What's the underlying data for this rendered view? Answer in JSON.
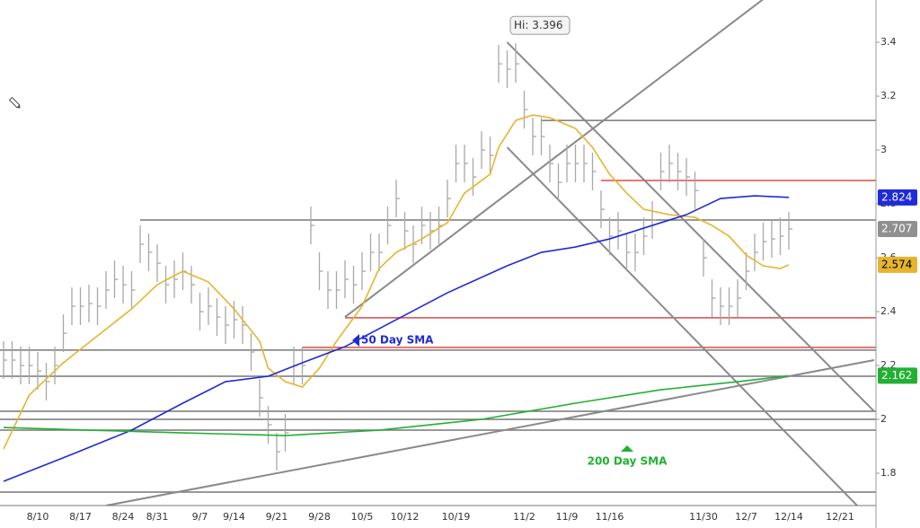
{
  "chart_data": {
    "type": "hlc",
    "categories": [
      null,
      null,
      null,
      null,
      "8/10",
      null,
      null,
      null,
      null,
      "8/17",
      null,
      null,
      null,
      null,
      "8/24",
      null,
      null,
      null,
      "8/31",
      null,
      null,
      null,
      null,
      "9/7",
      null,
      null,
      null,
      "9/14",
      null,
      null,
      null,
      null,
      "9/21",
      null,
      null,
      null,
      null,
      "9/28",
      null,
      null,
      null,
      null,
      "10/5",
      null,
      null,
      null,
      null,
      "10/12",
      null,
      null,
      null,
      null,
      null,
      "10/19",
      null,
      null,
      null,
      null,
      null,
      null,
      null,
      "11/2",
      null,
      null,
      null,
      null,
      "11/9",
      null,
      null,
      null,
      null,
      "11/16",
      null,
      null,
      null,
      null,
      null,
      null,
      null,
      null,
      null,
      null,
      "11/30",
      null,
      null,
      null,
      null,
      "12/7",
      null,
      null,
      null,
      null,
      "12/14",
      null,
      null,
      null,
      null,
      null,
      "12/21"
    ],
    "high": [
      2.29,
      2.29,
      2.27,
      2.27,
      2.25,
      2.21,
      2.27,
      2.39,
      2.49,
      2.49,
      2.5,
      2.49,
      2.55,
      2.59,
      2.57,
      2.55,
      2.72,
      2.69,
      2.65,
      2.57,
      2.59,
      2.62,
      2.57,
      2.47,
      2.49,
      2.45,
      2.42,
      2.44,
      2.42,
      2.32,
      2.15,
      2.05,
      1.95,
      2.02,
      2.27,
      2.27,
      2.79,
      2.62,
      2.55,
      2.55,
      2.59,
      2.57,
      2.62,
      2.69,
      2.69,
      2.79,
      2.89,
      2.77,
      2.72,
      2.79,
      2.77,
      2.79,
      2.89,
      3.02,
      3.02,
      2.97,
      3.07,
      3.05,
      3.39,
      3.37,
      3.396,
      3.22,
      3.12,
      3.12,
      3.02,
      2.95,
      3.02,
      3.02,
      3.02,
      2.99,
      2.85,
      2.75,
      2.77,
      2.69,
      2.69,
      2.75,
      2.81,
      2.99,
      3.02,
      2.99,
      2.97,
      2.92,
      2.67,
      2.52,
      2.49,
      2.49,
      2.52,
      2.62,
      2.69,
      2.73,
      2.74,
      2.75,
      2.77,
      null,
      null,
      null,
      null,
      null,
      null
    ],
    "low": [
      2.15,
      2.15,
      2.13,
      2.13,
      2.11,
      2.07,
      2.13,
      2.25,
      2.35,
      2.35,
      2.36,
      2.35,
      2.41,
      2.45,
      2.43,
      2.41,
      2.58,
      2.55,
      2.51,
      2.43,
      2.45,
      2.48,
      2.43,
      2.33,
      2.35,
      2.31,
      2.28,
      2.3,
      2.28,
      2.18,
      2.01,
      1.91,
      1.81,
      1.88,
      2.13,
      2.13,
      2.65,
      2.48,
      2.41,
      2.41,
      2.45,
      2.43,
      2.48,
      2.55,
      2.55,
      2.65,
      2.75,
      2.63,
      2.58,
      2.65,
      2.63,
      2.65,
      2.75,
      2.88,
      2.88,
      2.83,
      2.93,
      2.91,
      3.25,
      3.23,
      3.25,
      3.08,
      2.98,
      2.98,
      2.88,
      2.81,
      2.88,
      2.88,
      2.88,
      2.85,
      2.71,
      2.61,
      2.63,
      2.55,
      2.55,
      2.61,
      2.67,
      2.85,
      2.88,
      2.85,
      2.83,
      2.78,
      2.53,
      2.38,
      2.35,
      2.35,
      2.38,
      2.48,
      2.55,
      2.59,
      2.6,
      2.61,
      2.63,
      null,
      null,
      null,
      null,
      null,
      null
    ],
    "close": [
      2.22,
      2.22,
      2.2,
      2.2,
      2.18,
      2.14,
      2.2,
      2.32,
      2.42,
      2.42,
      2.43,
      2.42,
      2.48,
      2.52,
      2.5,
      2.48,
      2.65,
      2.62,
      2.58,
      2.5,
      2.52,
      2.55,
      2.5,
      2.4,
      2.42,
      2.38,
      2.35,
      2.37,
      2.35,
      2.25,
      2.08,
      1.98,
      1.88,
      1.95,
      2.2,
      2.2,
      2.72,
      2.55,
      2.48,
      2.48,
      2.52,
      2.5,
      2.55,
      2.62,
      2.62,
      2.72,
      2.82,
      2.7,
      2.65,
      2.72,
      2.7,
      2.72,
      2.82,
      2.95,
      2.95,
      2.9,
      3.0,
      2.98,
      3.32,
      3.3,
      3.32,
      3.15,
      3.05,
      3.05,
      2.95,
      2.88,
      2.95,
      2.95,
      2.95,
      2.92,
      2.78,
      2.68,
      2.7,
      2.62,
      2.62,
      2.68,
      2.74,
      2.92,
      2.95,
      2.92,
      2.9,
      2.85,
      2.6,
      2.45,
      2.42,
      2.42,
      2.45,
      2.55,
      2.62,
      2.66,
      2.67,
      2.68,
      2.707,
      null,
      null,
      null,
      null,
      null,
      null
    ],
    "color": "#a8a8a8",
    "close_color": "#8c8c8c",
    "hi_label": "Hi: 3.396",
    "ylim": [
      1.68,
      3.557
    ],
    "yticks": [
      1.8,
      2,
      2.2,
      2.4,
      2.6,
      2.8,
      3,
      3.2,
      3.4
    ],
    "grid": false,
    "lines": [
      {
        "color": "#e6b52e",
        "x": [
          0,
          3,
          7,
          11,
          15,
          18,
          21,
          24,
          27,
          30,
          31,
          33,
          35,
          37,
          39,
          42,
          44,
          46,
          49,
          52,
          54,
          57,
          58,
          60,
          62,
          64,
          67,
          69,
          71,
          73,
          75,
          78,
          81,
          83,
          85,
          87,
          89,
          91,
          92
        ],
        "values": [
          1.89,
          2.09,
          2.21,
          2.31,
          2.41,
          2.5,
          2.55,
          2.51,
          2.41,
          2.29,
          2.19,
          2.14,
          2.12,
          2.19,
          2.29,
          2.42,
          2.56,
          2.62,
          2.67,
          2.73,
          2.84,
          2.91,
          3.01,
          3.11,
          3.13,
          3.12,
          3.08,
          3.01,
          2.91,
          2.84,
          2.78,
          2.76,
          2.75,
          2.72,
          2.68,
          2.61,
          2.57,
          2.56,
          2.574
        ]
      },
      {
        "label": "50 Day SMA",
        "color": "#1f2bd6",
        "x": [
          0,
          8,
          15,
          21,
          26,
          31,
          35,
          40,
          46,
          52,
          59,
          63,
          67,
          71,
          75,
          80,
          84,
          88,
          92
        ],
        "values": [
          1.77,
          1.87,
          1.96,
          2.06,
          2.14,
          2.16,
          2.21,
          2.27,
          2.37,
          2.47,
          2.57,
          2.62,
          2.64,
          2.67,
          2.71,
          2.76,
          2.82,
          2.83,
          2.824
        ]
      },
      {
        "label": "200 Day SMA",
        "color": "#22b033",
        "x": [
          0,
          10,
          21,
          33,
          44,
          56,
          67,
          77,
          86,
          92
        ],
        "values": [
          1.97,
          1.96,
          1.95,
          1.94,
          1.96,
          2.0,
          2.06,
          2.11,
          2.14,
          2.162
        ]
      }
    ],
    "levels": [
      {
        "value": 3.11,
        "color": "#777777",
        "from": 63
      },
      {
        "value": 2.887,
        "color": "#e04848",
        "from": 70
      },
      {
        "value": 2.74,
        "color": "#777777",
        "from": 16
      },
      {
        "value": 2.377,
        "color": "#e04848",
        "from": 40
      },
      {
        "value": 2.267,
        "color": "#e04848",
        "from": 35
      },
      {
        "value": 2.257,
        "color": "#777777"
      },
      {
        "value": 2.16,
        "color": "#777777"
      },
      {
        "value": 2.03,
        "color": "#777777"
      },
      {
        "value": 2.0,
        "color": "#777777"
      },
      {
        "value": 1.96,
        "color": "#777777"
      },
      {
        "value": 1.73,
        "color": "#777777"
      }
    ],
    "trendlines": [
      {
        "x": [
          40,
          89
        ],
        "values": [
          2.38,
          3.56
        ],
        "color": "#8a8a8a"
      },
      {
        "x": [
          59,
          102
        ],
        "values": [
          3.4,
          2.03
        ],
        "color": "#8a8a8a"
      },
      {
        "x": [
          59,
          100
        ],
        "values": [
          3.01,
          1.68
        ],
        "color": "#8a8a8a"
      },
      {
        "x": [
          12,
          102
        ],
        "values": [
          1.68,
          2.22
        ],
        "color": "#8a8a8a"
      }
    ]
  }
}
